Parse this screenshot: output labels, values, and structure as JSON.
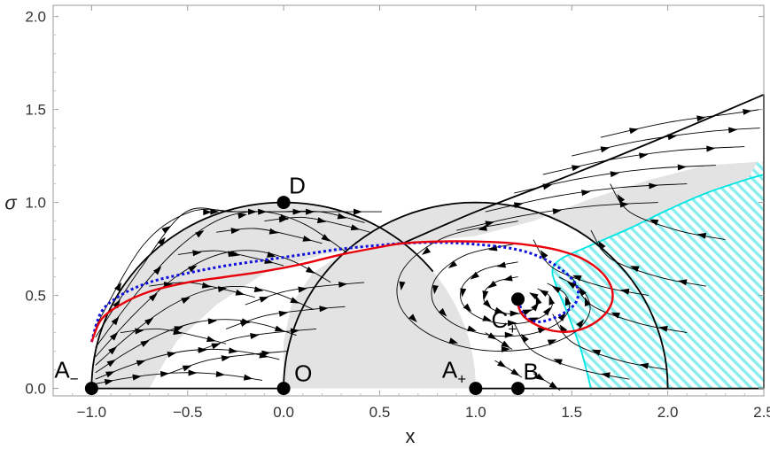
{
  "chart_data": {
    "type": "scatter",
    "title": "",
    "xlabel": "x",
    "ylabel": "σ",
    "xlim": [
      -1.2,
      2.5
    ],
    "ylim": [
      -0.04,
      2.06
    ],
    "x_ticks": [
      -1.0,
      -0.5,
      0.0,
      0.5,
      1.0,
      1.5,
      2.0,
      2.5
    ],
    "x_tick_labels": [
      "−1.0",
      "−0.5",
      "0.0",
      "0.5",
      "1.0",
      "1.5",
      "2.0",
      "2.5"
    ],
    "y_ticks": [
      0.0,
      0.5,
      1.0,
      1.5,
      2.0
    ],
    "y_tick_labels": [
      "0.0",
      "0.5",
      "1.0",
      "1.5",
      "2.0"
    ],
    "grid": false,
    "legend": "none",
    "colors": {
      "red_trajectory": "#e8000b",
      "blue_trajectory": "#1010dd",
      "cyan_region": "#00e5e5",
      "gray_region": "#e3e3e3",
      "boundary": "#000000"
    },
    "points": [
      {
        "label": "A",
        "subscript": "−",
        "x": -1.0,
        "y": 0.0
      },
      {
        "label": "O",
        "subscript": "",
        "x": 0.0,
        "y": 0.0
      },
      {
        "label": "D",
        "subscript": "",
        "x": 0.0,
        "y": 1.0
      },
      {
        "label": "A",
        "subscript": "+",
        "x": 1.0,
        "y": 0.0
      },
      {
        "label": "B",
        "subscript": "",
        "x": 1.22,
        "y": 0.0
      },
      {
        "label": "C",
        "subscript": "+",
        "x": 1.22,
        "y": 0.48
      }
    ],
    "red_trajectory": {
      "x": [
        -1.0,
        -0.95,
        -0.85,
        -0.7,
        -0.5,
        -0.3,
        -0.1,
        0.1,
        0.3,
        0.5,
        0.62,
        0.8,
        1.0,
        1.2,
        1.4,
        1.55,
        1.66,
        1.71,
        1.7,
        1.63,
        1.52,
        1.4,
        1.3,
        1.24,
        1.22,
        1.24
      ],
      "y": [
        0.25,
        0.37,
        0.45,
        0.52,
        0.57,
        0.6,
        0.63,
        0.67,
        0.72,
        0.76,
        0.78,
        0.79,
        0.79,
        0.78,
        0.75,
        0.7,
        0.62,
        0.53,
        0.44,
        0.36,
        0.31,
        0.31,
        0.35,
        0.4,
        0.46,
        0.49
      ]
    },
    "blue_trajectory": {
      "x": [
        -1.0,
        -0.95,
        -0.85,
        -0.7,
        -0.5,
        -0.3,
        -0.1,
        0.1,
        0.3,
        0.5,
        0.62,
        0.8,
        1.0,
        1.2,
        1.35,
        1.47,
        1.53,
        1.52,
        1.45,
        1.35,
        1.28,
        1.24,
        1.23
      ],
      "y": [
        0.25,
        0.41,
        0.5,
        0.57,
        0.62,
        0.66,
        0.69,
        0.72,
        0.75,
        0.77,
        0.78,
        0.785,
        0.775,
        0.75,
        0.7,
        0.62,
        0.54,
        0.46,
        0.4,
        0.36,
        0.37,
        0.41,
        0.46
      ]
    }
  }
}
